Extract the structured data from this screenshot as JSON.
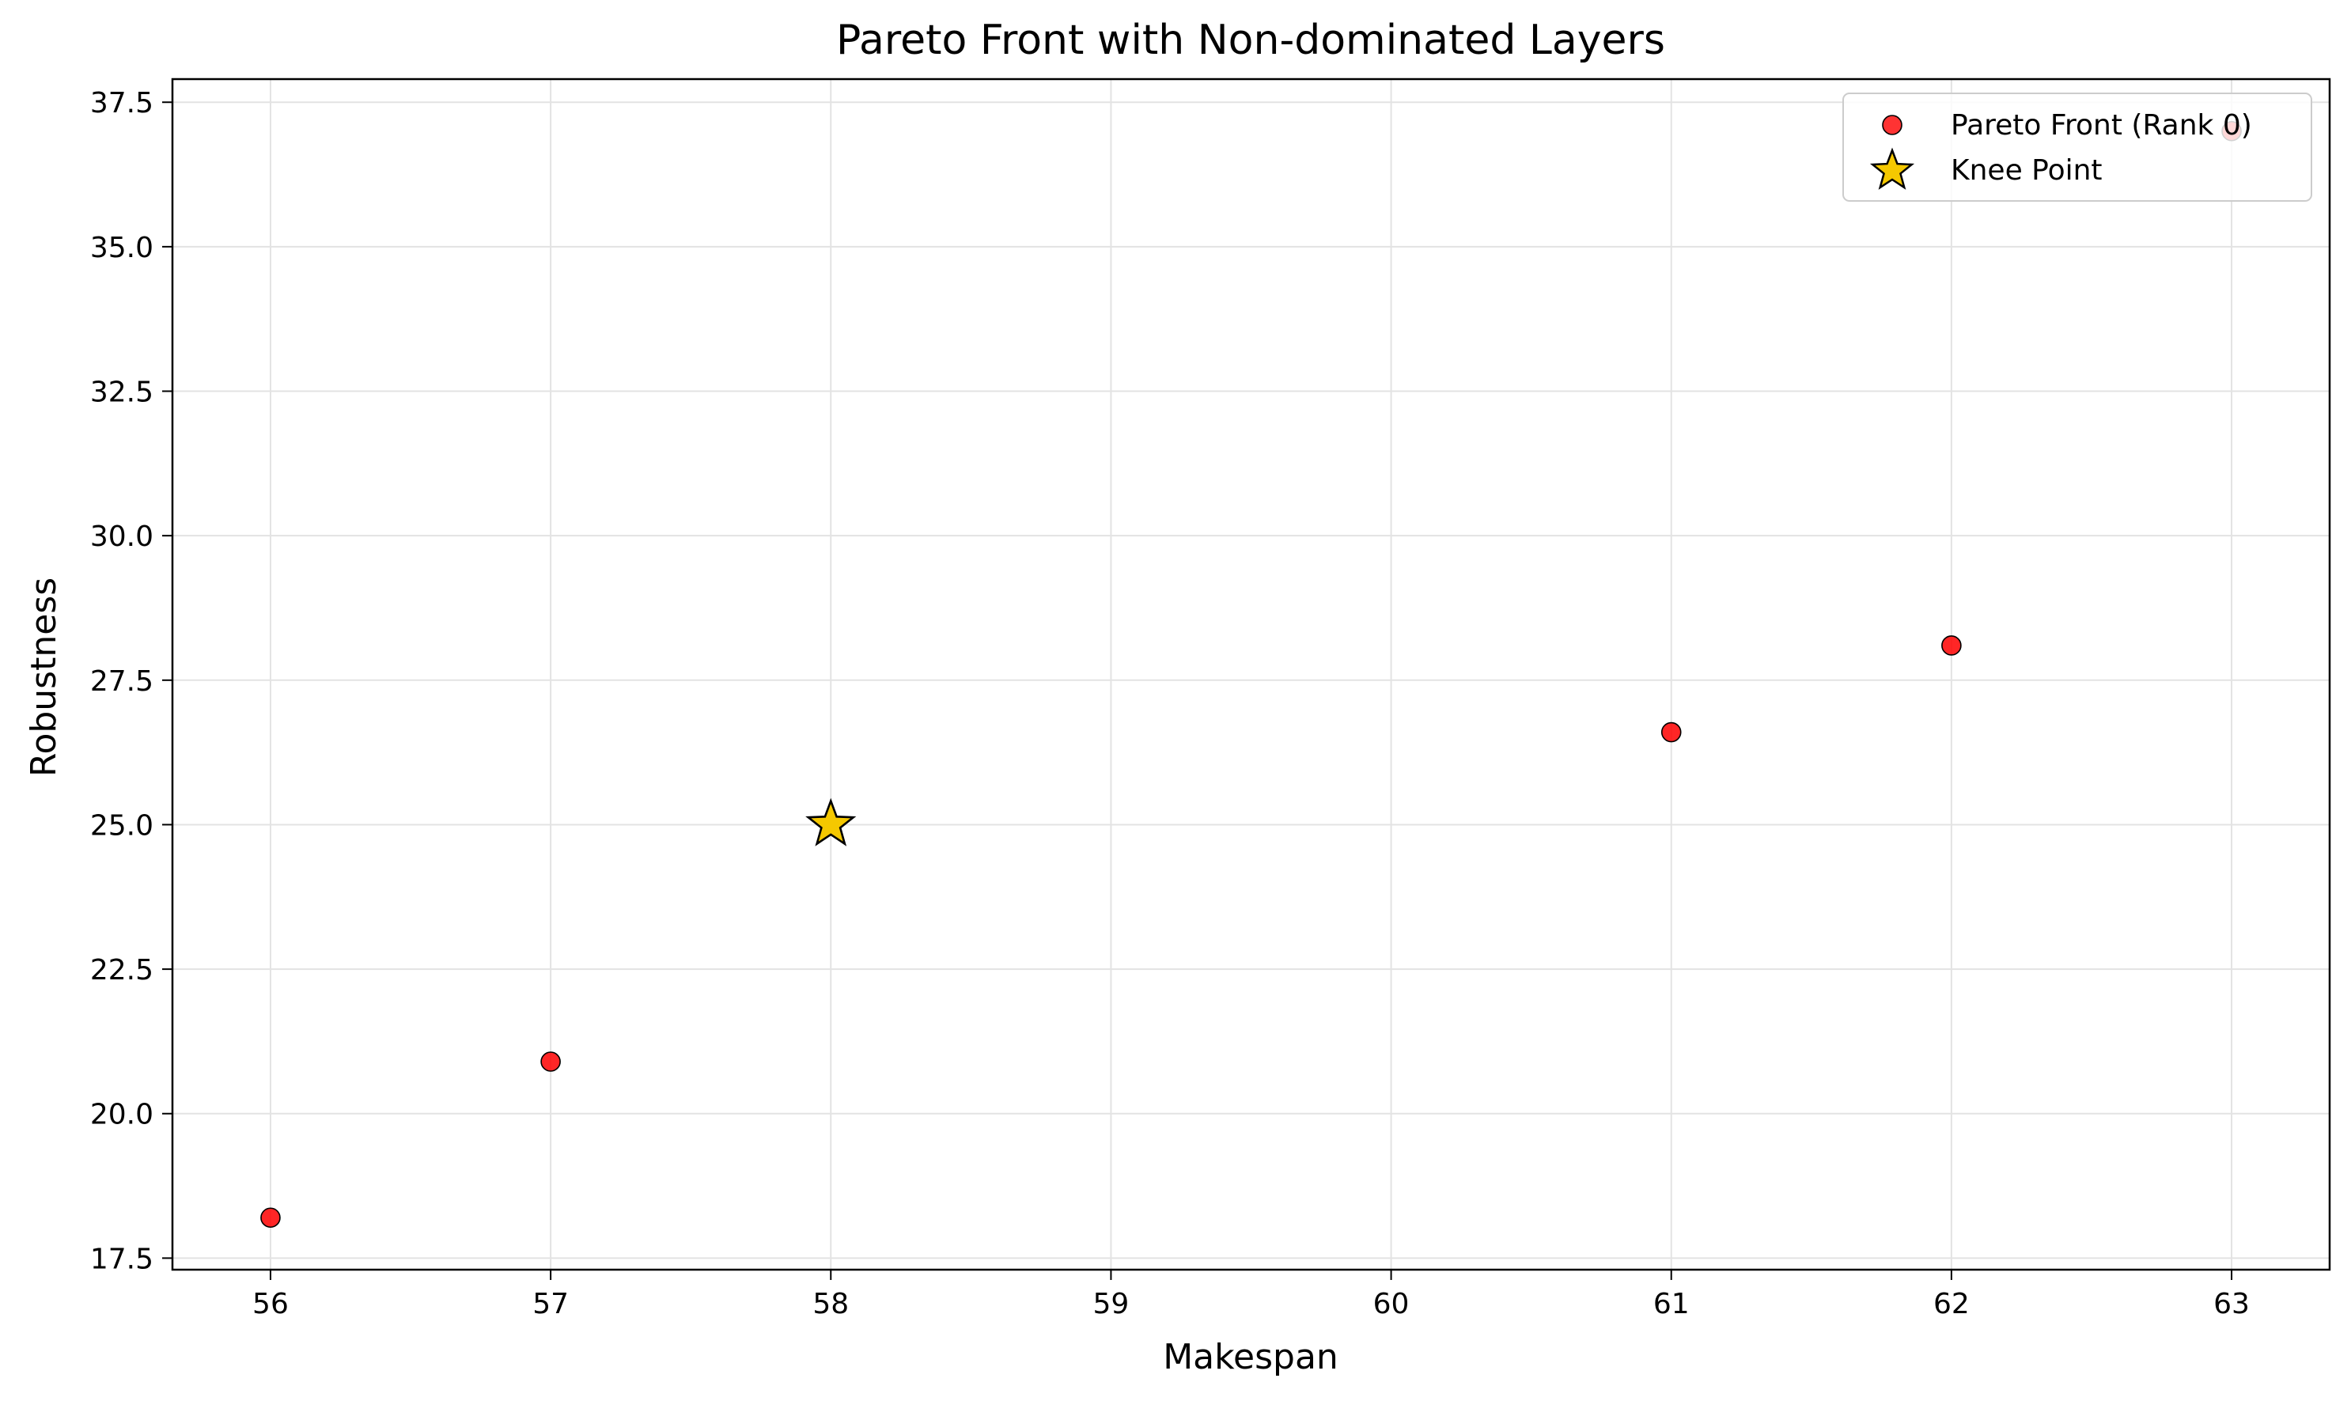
{
  "chart_data": {
    "type": "scatter",
    "title": "Pareto Front with Non-dominated Layers",
    "xlabel": "Makespan",
    "ylabel": "Robustness",
    "xlim": [
      55.65,
      63.35
    ],
    "ylim": [
      17.3,
      37.9
    ],
    "xticks": [
      56,
      57,
      58,
      59,
      60,
      61,
      62,
      63
    ],
    "yticks": [
      17.5,
      20.0,
      22.5,
      25.0,
      27.5,
      30.0,
      32.5,
      35.0,
      37.5
    ],
    "ytick_labels": [
      "17.5",
      "20.0",
      "22.5",
      "25.0",
      "27.5",
      "30.0",
      "32.5",
      "35.0",
      "37.5"
    ],
    "grid": true,
    "legend_position": "upper right",
    "series": [
      {
        "name": "Pareto Front (Rank 0)",
        "marker": "circle",
        "color": "#ff0000",
        "edge_color": "#000000",
        "points": [
          {
            "x": 56,
            "y": 18.2
          },
          {
            "x": 57,
            "y": 20.9
          },
          {
            "x": 61,
            "y": 26.6
          },
          {
            "x": 62,
            "y": 28.1
          },
          {
            "x": 63,
            "y": 37.0
          }
        ]
      },
      {
        "name": "Knee Point",
        "marker": "star",
        "color": "#f5c800",
        "edge_color": "#000000",
        "points": [
          {
            "x": 58,
            "y": 25.0
          }
        ]
      }
    ]
  }
}
